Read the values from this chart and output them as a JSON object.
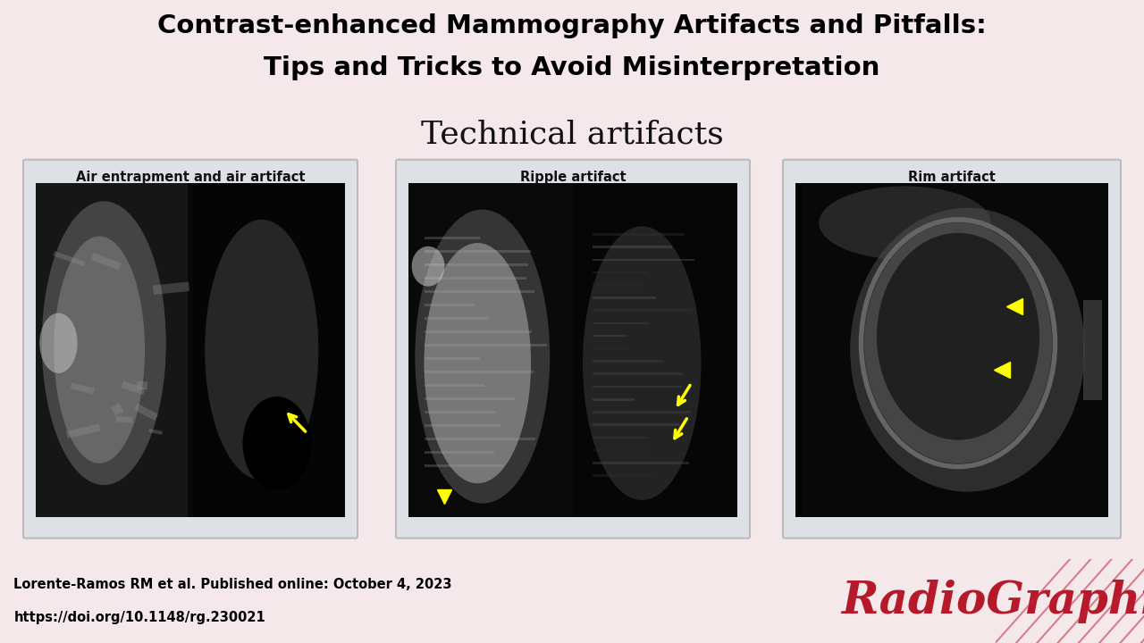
{
  "title_line1": "Contrast-enhanced Mammography Artifacts and Pitfalls:",
  "title_line2": "Tips and Tricks to Avoid Misinterpretation",
  "section_title": "Technical artifacts",
  "panel_labels": [
    "Air entrapment and air artifact",
    "Ripple artifact",
    "Rim artifact"
  ],
  "bg_color": "#f5e8eb",
  "header_bg": "#ffffff",
  "title_color": "#000000",
  "section_title_color": "#111111",
  "panel_bg": "#dde0e5",
  "red_line_color": "#c0253a",
  "footer_text_line1": "Lorente-Ramos RM et al. Published online: October 4, 2023",
  "footer_text_line2": "https://doi.org/10.1148/rg.230021",
  "radiographics_color": "#b5192a",
  "footer_bg": "#ffffff",
  "yellow": "#ffff00"
}
